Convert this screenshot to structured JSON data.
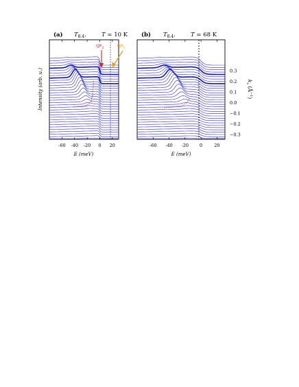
{
  "panels": [
    {
      "letter": "(a)",
      "title": "T",
      "title_sub": "8.4",
      "temp_symbol": "T",
      "temp_label": " = 10 K",
      "annotations": [
        "QP",
        "QP"
      ],
      "annotation_subs": [
        "2",
        "1"
      ],
      "annotation_colors": [
        "#e02020",
        "#f0a020"
      ]
    },
    {
      "letter": "(b)",
      "title": "T",
      "title_sub": "8.4",
      "temp_symbol": "T",
      "temp_label": " = 68 K"
    }
  ],
  "y_axis_label": "Intensity (arb. u.)",
  "x_axis_label": "E",
  "x_axis_unit": "(meV)",
  "right_axis_label": "k",
  "right_axis_sub": "x",
  "right_axis_unit": "(Å",
  "right_axis_unit_sup": "−1",
  "right_axis_close": ")",
  "colors": {
    "curves": "#2a2ad8",
    "highlight": "#1010c0",
    "dashed_trace": "#e02020",
    "qp2_arrow": "#e02020",
    "qp1_arrow": "#f0a020"
  },
  "chart_data": [
    {
      "type": "line",
      "panel": "a",
      "xlim": [
        -80,
        30
      ],
      "xticks": [
        -60,
        -40,
        -20,
        0,
        20
      ],
      "xtick_labels": [
        "-60",
        "-40",
        "-20",
        "0",
        "20"
      ],
      "kx_ticks": [
        0.3,
        0.2,
        0.1,
        0.0,
        -0.1,
        -0.2,
        -0.3
      ],
      "kx_tick_labels": [
        "0.3",
        "0.2",
        "0.1",
        "0.0",
        "−0.1",
        "−0.2",
        "−0.3"
      ],
      "fermi_level_meV": 0,
      "peak_energy_meV": -33,
      "qp2_energy_meV": -12,
      "qp1_energy_meV": 0,
      "n_curves": 34
    },
    {
      "type": "line",
      "panel": "b",
      "xlim": [
        -80,
        30
      ],
      "xticks": [
        -60,
        -40,
        -20,
        0,
        20
      ],
      "xtick_labels": [
        "-60",
        "-40",
        "-20",
        "0",
        "20"
      ],
      "kx_ticks": [
        0.3,
        0.2,
        0.1,
        0.0,
        -0.1,
        -0.2,
        -0.3
      ],
      "kx_tick_labels": [
        "0.3",
        "0.2",
        "0.1",
        "0.0",
        "−0.1",
        "−0.2",
        "−0.3"
      ],
      "fermi_level_meV": 0,
      "peak_energy_meV": -33,
      "n_curves": 34
    }
  ]
}
